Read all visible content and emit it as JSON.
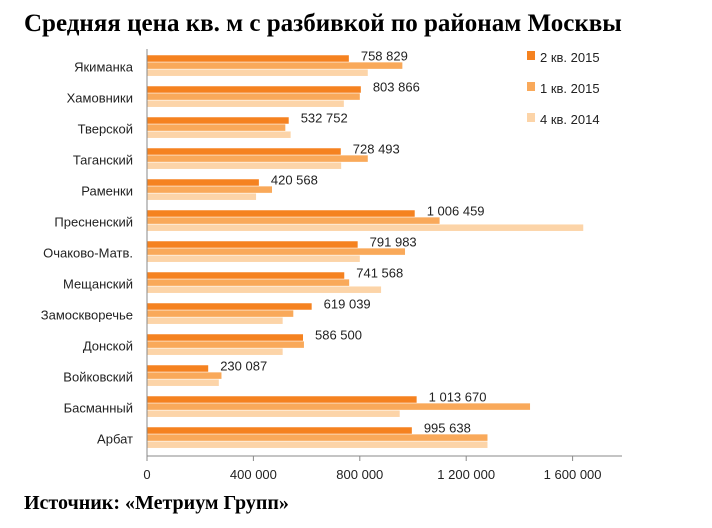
{
  "title": "Средняя цена кв. м с разбивкой по районам Москвы",
  "source": "Источник: «Метриум Групп»",
  "chart_data": {
    "type": "bar",
    "orientation": "horizontal",
    "title": "",
    "xlabel": "",
    "ylabel": "",
    "xlim": [
      0,
      1800000
    ],
    "x_ticks": [
      0,
      400000,
      800000,
      1200000,
      1600000
    ],
    "x_tick_labels": [
      "0",
      "400 000",
      "800 000",
      "1 200 000",
      "1 600 000"
    ],
    "grid": false,
    "legend_position": "top-right",
    "categories": [
      "Якиманка",
      "Хамовники",
      "Тверской",
      "Таганский",
      "Раменки",
      "Пресненский",
      "Очаково-Матв.",
      "Мещанский",
      "Замоскворечье",
      "Донской",
      "Войковский",
      "Басманный",
      "Арбат"
    ],
    "series": [
      {
        "name": "2 кв. 2015",
        "color": "#F58220",
        "values": [
          758829,
          803866,
          532752,
          728493,
          420568,
          1006459,
          791983,
          741568,
          619039,
          586500,
          230087,
          1013670,
          995638
        ],
        "labels": [
          "758 829",
          "803 866",
          "532 752",
          "728 493",
          "420 568",
          "1 006 459",
          "791 983",
          "741 568",
          "619 039",
          "586 500",
          "230 087",
          "1 013 670",
          "995 638"
        ]
      },
      {
        "name": "1 кв. 2015",
        "color": "#F9A95A",
        "values": [
          960000,
          800000,
          520000,
          830000,
          470000,
          1100000,
          970000,
          760000,
          550000,
          590000,
          280000,
          1440000,
          1280000
        ]
      },
      {
        "name": "4 кв. 2014",
        "color": "#FCD4A8",
        "values": [
          830000,
          740000,
          540000,
          730000,
          410000,
          1640000,
          800000,
          880000,
          510000,
          510000,
          270000,
          950000,
          1280000
        ]
      }
    ]
  }
}
